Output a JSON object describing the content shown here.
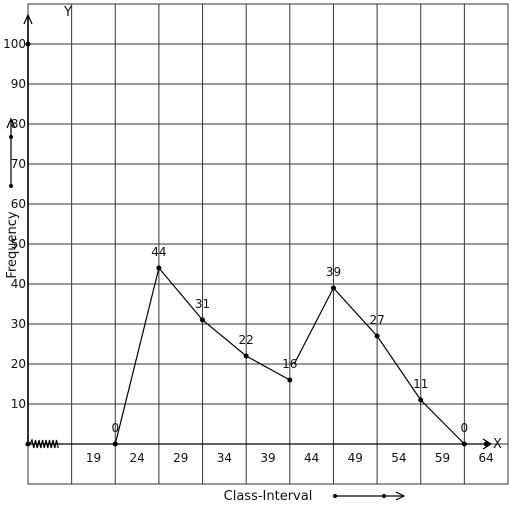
{
  "chart_data": {
    "type": "line",
    "title": "",
    "xlabel": "Class-Interval",
    "ylabel": "Frequency",
    "x_axis_letter": "X",
    "y_axis_letter": "Y",
    "x_tick_labels": [
      "19",
      "24",
      "29",
      "34",
      "39",
      "44",
      "49",
      "54",
      "59",
      "64"
    ],
    "x_tick_values": [
      19,
      24,
      29,
      34,
      39,
      44,
      49,
      54,
      59,
      64
    ],
    "y_tick_labels": [
      "10",
      "20",
      "30",
      "40",
      "50",
      "60",
      "70",
      "80",
      "90",
      "100"
    ],
    "y_tick_values": [
      10,
      20,
      30,
      40,
      50,
      60,
      70,
      80,
      90,
      100
    ],
    "xlim": [
      11.5,
      66.5
    ],
    "ylim": [
      -10,
      110
    ],
    "grid": true,
    "x_axis_break": true,
    "series": [
      {
        "polylines": [
          {
            "x": [
              21.5,
              26.5,
              31.5,
              36.5,
              41.5
            ],
            "y": [
              0,
              44,
              31,
              22,
              16
            ]
          },
          {
            "x": [
              42,
              46.5,
              51.5,
              56.5,
              61.5
            ],
            "y": [
              20,
              39,
              27,
              11,
              0
            ]
          }
        ],
        "points": [
          {
            "x": 21.5,
            "y": 0,
            "label": "0"
          },
          {
            "x": 26.5,
            "y": 44,
            "label": "44"
          },
          {
            "x": 31.5,
            "y": 31,
            "label": "31"
          },
          {
            "x": 36.5,
            "y": 22,
            "label": "22"
          },
          {
            "x": 41.5,
            "y": 16,
            "label": "16"
          },
          {
            "x": 46.5,
            "y": 39,
            "label": "39"
          },
          {
            "x": 51.5,
            "y": 27,
            "label": "27"
          },
          {
            "x": 56.5,
            "y": 11,
            "label": "11"
          },
          {
            "x": 61.5,
            "y": 0,
            "label": "0"
          }
        ],
        "extra_points": [
          {
            "x": 11.5,
            "y": 100
          },
          {
            "x": 64,
            "y": 0
          }
        ]
      }
    ]
  }
}
